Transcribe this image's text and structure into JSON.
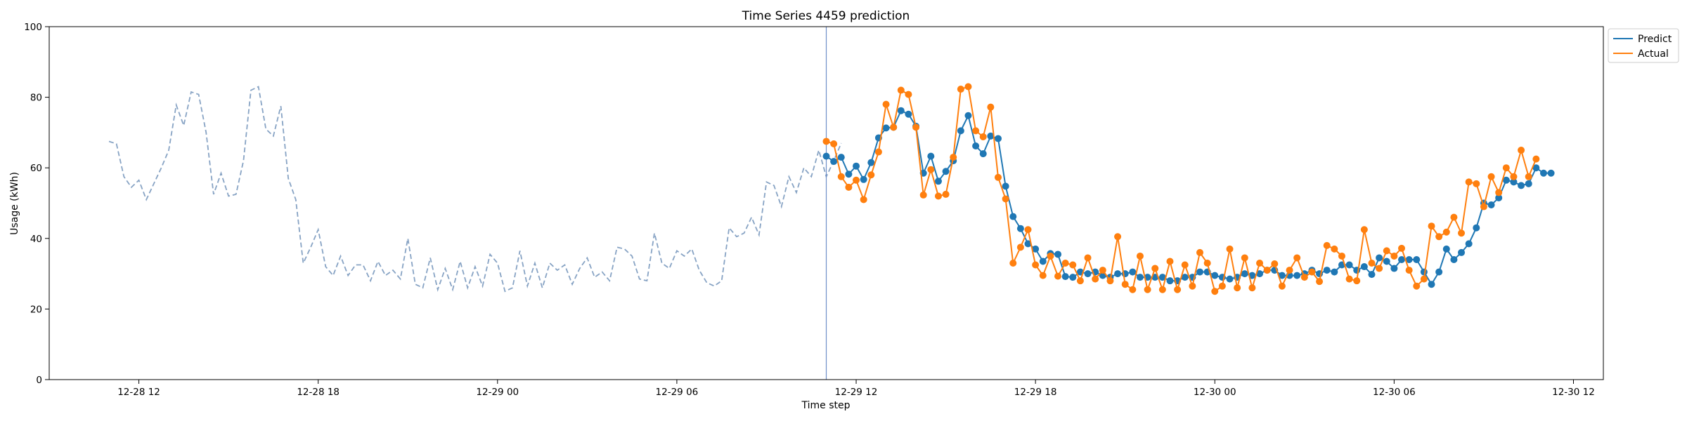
{
  "chart_data": {
    "type": "line",
    "title": "Time Series 4459 prediction",
    "xlabel": "Time step",
    "ylabel": "Usage (kWh)",
    "ylim": [
      0,
      100
    ],
    "yticks": [
      0,
      20,
      40,
      60,
      80,
      100
    ],
    "x_axis": {
      "start": "12-28 09:00",
      "end": "12-30 13:00",
      "ticks": [
        {
          "time": "12-28 12:00",
          "label": "12-28 12"
        },
        {
          "time": "12-28 18:00",
          "label": "12-28 18"
        },
        {
          "time": "12-29 00:00",
          "label": "12-29 00"
        },
        {
          "time": "12-29 06:00",
          "label": "12-29 06"
        },
        {
          "time": "12-29 12:00",
          "label": "12-29 12"
        },
        {
          "time": "12-29 18:00",
          "label": "12-29 18"
        },
        {
          "time": "12-30 00:00",
          "label": "12-30 00"
        },
        {
          "time": "12-30 06:00",
          "label": "12-30 06"
        },
        {
          "time": "12-30 12:00",
          "label": "12-30 12"
        }
      ]
    },
    "grid": false,
    "legend_position": "outside top-right",
    "forecast_start": "12-29 11:00",
    "step_minutes": 15,
    "history": {
      "start": "12-28 11:00",
      "color": "#87a3c4",
      "values": [
        67.5,
        66.8,
        57.5,
        54.5,
        56.5,
        51,
        55.5,
        60,
        65,
        77.8,
        72,
        81.5,
        80.8,
        70,
        52.5,
        58.5,
        52,
        52.5,
        62,
        82,
        83,
        71,
        69,
        77.5,
        57,
        51,
        33,
        37.5,
        42.5,
        32,
        29.5,
        35,
        29.5,
        32.5,
        32.5,
        28,
        33.5,
        29.5,
        31,
        28.5,
        40,
        27,
        26,
        34.5,
        25.5,
        31.5,
        25.5,
        33.5,
        26,
        32,
        26.5,
        35.5,
        33,
        25,
        26,
        36.5,
        26.5,
        33,
        26,
        33,
        31,
        32.5,
        27,
        31.5,
        34.5,
        29,
        30.5,
        28,
        37.5,
        37,
        35,
        28.5,
        28,
        41.5,
        33,
        31.5,
        36.5,
        35,
        37,
        31,
        27.5,
        26.5,
        28,
        43,
        40.5,
        41.5,
        46,
        41,
        56,
        55,
        49,
        57.5,
        53,
        60,
        57.5,
        65,
        57.5,
        62,
        67
      ]
    },
    "series": [
      {
        "name": "Predict",
        "color": "#1f77b4",
        "start": "12-29 11:00",
        "values": [
          63.3,
          61.8,
          63,
          58.2,
          60.5,
          56.7,
          61.5,
          68.5,
          71.3,
          71.5,
          76.2,
          75.2,
          71.8,
          58.5,
          63.3,
          56.2,
          59,
          62,
          70.5,
          74.8,
          66.2,
          64,
          69,
          68.3,
          54.8,
          46.2,
          42.8,
          38.5,
          37,
          33.5,
          35.7,
          35.5,
          29.2,
          29,
          30.5,
          30,
          30.5,
          29.5,
          29,
          30,
          30,
          30.5,
          29,
          29,
          29,
          29,
          28,
          28,
          29,
          29,
          30.5,
          30.5,
          29.5,
          29,
          28.5,
          29,
          30,
          29.5,
          30,
          31,
          31,
          29.5,
          29.5,
          29.5,
          30,
          31,
          30,
          31,
          30.5,
          32.5,
          32.5,
          31,
          32,
          29.8,
          34.5,
          33.5,
          31.5,
          34,
          34,
          34,
          30.5,
          27,
          30.5,
          37,
          34,
          36,
          38.5,
          43,
          50,
          49.5,
          51.5,
          56.5,
          56,
          55,
          55.5,
          60,
          58.5,
          58.5
        ]
      },
      {
        "name": "Actual",
        "color": "#ff7f0e",
        "start": "12-29 11:00",
        "values": [
          67.5,
          66.8,
          57.5,
          54.5,
          56.5,
          51,
          58,
          64.5,
          78,
          71.5,
          82,
          80.8,
          71.5,
          52.3,
          59.5,
          52,
          52.5,
          63,
          82.3,
          83,
          70.5,
          68.8,
          77.2,
          57.3,
          51.2,
          33,
          37.5,
          42.5,
          32.5,
          29.5,
          35,
          29.3,
          33,
          32.5,
          28,
          34.5,
          28.5,
          31,
          28,
          40.5,
          27,
          25.5,
          35,
          25.5,
          31.5,
          25.5,
          33.5,
          25.5,
          32.5,
          26.5,
          36,
          33,
          25,
          26.5,
          37,
          26,
          34.5,
          26,
          33,
          31,
          32.8,
          26.5,
          31,
          34.5,
          29,
          30.5,
          27.8,
          38,
          37,
          35,
          28.5,
          28,
          42.5,
          33,
          31.5,
          36.5,
          35,
          37.2,
          31,
          26.5,
          28.5,
          43.5,
          40.5,
          41.8,
          46,
          41.5,
          56,
          55.5,
          49,
          57.5,
          53,
          60,
          57.5,
          65,
          57.5,
          62.5
        ]
      }
    ]
  }
}
